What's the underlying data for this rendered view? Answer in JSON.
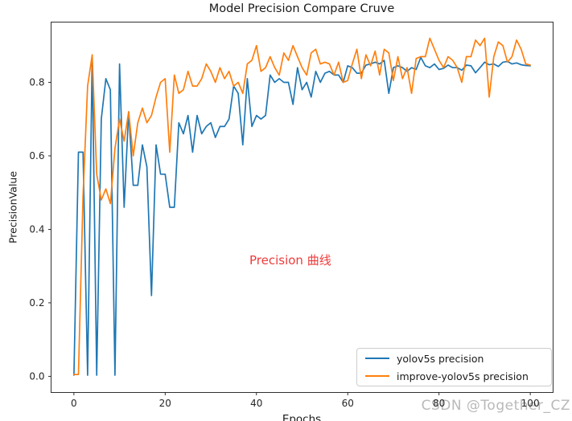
{
  "title": "Model Precision Compare Cruve",
  "axes": {
    "xlabel": "Epochs",
    "ylabel": "PrecisionValue",
    "xtick_labels": [
      "0",
      "20",
      "40",
      "60",
      "80",
      "100"
    ],
    "xtick_values": [
      0,
      20,
      40,
      60,
      80,
      100
    ],
    "ytick_labels": [
      "0.0",
      "0.2",
      "0.4",
      "0.6",
      "0.8"
    ],
    "ytick_values": [
      0.0,
      0.2,
      0.4,
      0.6,
      0.8
    ]
  },
  "annotation": {
    "text": "Precision 曲线",
    "color": "#ee3b3b"
  },
  "watermark": "CSDN @Together_CZ",
  "chart_data": {
    "type": "line",
    "title": "Model Precision Compare Cruve",
    "xlabel": "Epochs",
    "ylabel": "PrecisionValue",
    "xlim": [
      -5,
      105
    ],
    "ylim": [
      -0.044,
      0.964
    ],
    "grid": false,
    "legend_position": "lower right",
    "x_start": 0,
    "x_step": 1,
    "series": [
      {
        "name": "yolov5s precision",
        "color": "#1f77b4",
        "values": [
          0.003,
          0.61,
          0.61,
          0.003,
          0.87,
          0.003,
          0.7,
          0.81,
          0.78,
          0.003,
          0.85,
          0.46,
          0.72,
          0.52,
          0.52,
          0.63,
          0.57,
          0.22,
          0.63,
          0.55,
          0.55,
          0.46,
          0.46,
          0.69,
          0.66,
          0.71,
          0.61,
          0.71,
          0.66,
          0.68,
          0.69,
          0.65,
          0.68,
          0.68,
          0.7,
          0.79,
          0.77,
          0.63,
          0.81,
          0.68,
          0.71,
          0.7,
          0.71,
          0.82,
          0.8,
          0.81,
          0.8,
          0.8,
          0.74,
          0.84,
          0.78,
          0.8,
          0.76,
          0.83,
          0.8,
          0.825,
          0.83,
          0.82,
          0.82,
          0.8,
          0.845,
          0.84,
          0.825,
          0.825,
          0.847,
          0.85,
          0.855,
          0.85,
          0.86,
          0.77,
          0.84,
          0.845,
          0.84,
          0.83,
          0.84,
          0.835,
          0.868,
          0.845,
          0.84,
          0.85,
          0.835,
          0.838,
          0.847,
          0.84,
          0.84,
          0.833,
          0.847,
          0.845,
          0.826,
          0.84,
          0.855,
          0.848,
          0.85,
          0.843,
          0.855,
          0.857,
          0.85,
          0.853,
          0.848,
          0.846,
          0.845
        ]
      },
      {
        "name": "improve-yolov5s precision",
        "color": "#ff7f0e",
        "values": [
          0.005,
          0.005,
          0.49,
          0.79,
          0.875,
          0.55,
          0.48,
          0.51,
          0.47,
          0.62,
          0.7,
          0.64,
          0.72,
          0.6,
          0.69,
          0.73,
          0.69,
          0.71,
          0.76,
          0.8,
          0.81,
          0.61,
          0.82,
          0.77,
          0.78,
          0.83,
          0.79,
          0.79,
          0.81,
          0.85,
          0.83,
          0.8,
          0.84,
          0.81,
          0.83,
          0.79,
          0.8,
          0.77,
          0.85,
          0.86,
          0.9,
          0.83,
          0.84,
          0.87,
          0.84,
          0.82,
          0.88,
          0.86,
          0.9,
          0.87,
          0.84,
          0.82,
          0.88,
          0.89,
          0.85,
          0.855,
          0.85,
          0.82,
          0.855,
          0.8,
          0.805,
          0.85,
          0.89,
          0.81,
          0.875,
          0.845,
          0.885,
          0.82,
          0.89,
          0.88,
          0.805,
          0.87,
          0.81,
          0.84,
          0.77,
          0.865,
          0.87,
          0.87,
          0.92,
          0.89,
          0.86,
          0.84,
          0.87,
          0.86,
          0.84,
          0.8,
          0.87,
          0.87,
          0.915,
          0.9,
          0.92,
          0.76,
          0.87,
          0.91,
          0.9,
          0.855,
          0.87,
          0.915,
          0.89,
          0.85,
          0.847
        ]
      }
    ],
    "annotations": [
      {
        "text": "Precision 曲线",
        "x": 48,
        "y": 0.32,
        "color": "#ee3b3b"
      }
    ]
  }
}
